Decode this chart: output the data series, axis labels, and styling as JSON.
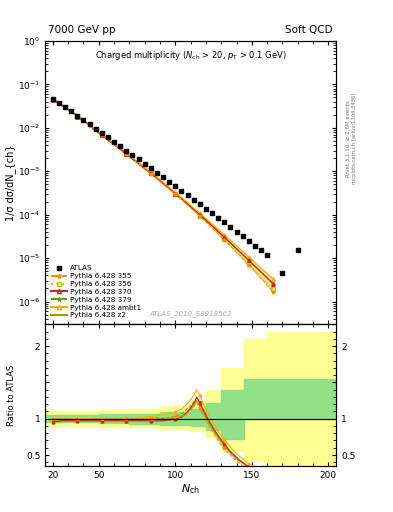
{
  "title_left": "7000 GeV pp",
  "title_right": "Soft QCD",
  "ylabel_main": "1/σ dσ/dN_{ch}",
  "ylabel_ratio": "Ratio to ATLAS",
  "xlabel": "N_{ch}",
  "watermark": "ATLAS_2010_S8918562",
  "right_label": "Rivet 3.1.10, ≥ 2.6M events",
  "right_label2": "mcplots.cern.ch [arXiv:1306.3436]",
  "xlim": [
    15,
    205
  ],
  "ylim_main": [
    3e-07,
    1.0
  ],
  "colors": {
    "p355": "#FF8C00",
    "p356": "#AACC00",
    "p370": "#CC2222",
    "p379": "#669900",
    "ambt1": "#FFAA00",
    "z2": "#999900"
  },
  "atlas_x": [
    20,
    24,
    28,
    32,
    36,
    40,
    44,
    48,
    52,
    56,
    60,
    64,
    68,
    72,
    76,
    80,
    84,
    88,
    92,
    96,
    100,
    104,
    108,
    112,
    116,
    120,
    124,
    128,
    132,
    136,
    140,
    144,
    148,
    152,
    156,
    160,
    170,
    180
  ],
  "atlas_y": [
    0.046,
    0.038,
    0.03,
    0.024,
    0.019,
    0.015,
    0.012,
    0.0095,
    0.0075,
    0.006,
    0.0048,
    0.0038,
    0.003,
    0.0024,
    0.0019,
    0.0015,
    0.00118,
    0.00093,
    0.00073,
    0.00058,
    0.00046,
    0.00036,
    0.00028,
    0.00022,
    0.000175,
    0.000138,
    0.000109,
    8.6e-05,
    6.7e-05,
    5.3e-05,
    4.1e-05,
    3.2e-05,
    2.5e-05,
    1.95e-05,
    1.52e-05,
    1.2e-05,
    4.5e-06,
    1.5e-05
  ],
  "mc_x": [
    20,
    22,
    24,
    26,
    28,
    30,
    32,
    34,
    36,
    38,
    40,
    42,
    44,
    46,
    48,
    50,
    52,
    54,
    56,
    58,
    60,
    62,
    64,
    66,
    68,
    70,
    72,
    74,
    76,
    78,
    80,
    82,
    84,
    86,
    88,
    90,
    92,
    94,
    96,
    98,
    100,
    102,
    104,
    106,
    108,
    110,
    112,
    114,
    116,
    118,
    120,
    122,
    124,
    126,
    128,
    130,
    132,
    134,
    136,
    138,
    140,
    142,
    144,
    146,
    148,
    150,
    152,
    154,
    156,
    158,
    160,
    162,
    164
  ],
  "pythia355_y": [
    0.046,
    0.042,
    0.038,
    0.034,
    0.03,
    0.027,
    0.024,
    0.021,
    0.019,
    0.016,
    0.014,
    0.013,
    0.011,
    0.01,
    0.0088,
    0.0078,
    0.0069,
    0.0061,
    0.0054,
    0.0048,
    0.0042,
    0.0037,
    0.0033,
    0.0029,
    0.0025,
    0.0022,
    0.002,
    0.0017,
    0.0015,
    0.0013,
    0.00115,
    0.00101,
    0.00088,
    0.00077,
    0.00068,
    0.00059,
    0.00052,
    0.00045,
    0.00039,
    0.00034,
    0.0003,
    0.00026,
    0.000225,
    0.000194,
    0.000167,
    0.000144,
    0.000124,
    0.000107,
    9.18e-05,
    7.89e-05,
    6.77e-05,
    5.8e-05,
    4.96e-05,
    4.24e-05,
    3.62e-05,
    3.09e-05,
    2.63e-05,
    2.24e-05,
    1.9e-05,
    1.61e-05,
    1.36e-05,
    1.15e-05,
    9.7e-06,
    8.2e-06,
    6.9e-06,
    5.8e-06,
    4.9e-06,
    4.1e-06,
    3.4e-06,
    2.9e-06,
    2.4e-06,
    2e-06,
    1.7e-06
  ],
  "pythia356_y": [
    0.046,
    0.042,
    0.038,
    0.034,
    0.031,
    0.027,
    0.024,
    0.021,
    0.019,
    0.017,
    0.015,
    0.013,
    0.011,
    0.01,
    0.0088,
    0.0078,
    0.0069,
    0.0061,
    0.0054,
    0.0048,
    0.0042,
    0.0037,
    0.0033,
    0.0029,
    0.0026,
    0.0023,
    0.002,
    0.0017,
    0.0015,
    0.0013,
    0.00116,
    0.00101,
    0.00089,
    0.00078,
    0.00068,
    0.0006,
    0.00052,
    0.00046,
    0.0004,
    0.00035,
    0.0003,
    0.00026,
    0.000228,
    0.000197,
    0.00017,
    0.000147,
    0.000127,
    0.00011,
    9.46e-05,
    8.14e-05,
    7e-05,
    6.01e-05,
    5.15e-05,
    4.41e-05,
    3.78e-05,
    3.23e-05,
    2.76e-05,
    2.36e-05,
    2.01e-05,
    1.71e-05,
    1.45e-05,
    1.23e-05,
    1.04e-05,
    8.8e-06,
    7.5e-06,
    6.3e-06,
    5.3e-06,
    4.5e-06,
    3.8e-06,
    3.2e-06,
    2.7e-06,
    2.3e-06,
    1.9e-06
  ],
  "pythia370_y": [
    0.044,
    0.04,
    0.036,
    0.033,
    0.029,
    0.026,
    0.023,
    0.021,
    0.018,
    0.016,
    0.014,
    0.013,
    0.011,
    0.0097,
    0.0086,
    0.0076,
    0.0067,
    0.0059,
    0.0052,
    0.0046,
    0.0041,
    0.0036,
    0.0032,
    0.0028,
    0.0025,
    0.0022,
    0.0019,
    0.0017,
    0.0015,
    0.0013,
    0.00115,
    0.00101,
    0.00089,
    0.00078,
    0.00068,
    0.0006,
    0.00052,
    0.00046,
    0.0004,
    0.00035,
    0.0003,
    0.000266,
    0.000232,
    0.000202,
    0.000175,
    0.000152,
    0.000132,
    0.000115,
    9.95e-05,
    8.61e-05,
    7.44e-05,
    6.42e-05,
    5.54e-05,
    4.77e-05,
    4.11e-05,
    3.53e-05,
    3.04e-05,
    2.61e-05,
    2.24e-05,
    1.92e-05,
    1.65e-05,
    1.41e-05,
    1.21e-05,
    1.04e-05,
    8.9e-06,
    7.6e-06,
    6.5e-06,
    5.6e-06,
    4.8e-06,
    4.1e-06,
    3.5e-06,
    3e-06,
    2.5e-06
  ],
  "pythia379_y": [
    0.046,
    0.042,
    0.038,
    0.034,
    0.03,
    0.027,
    0.024,
    0.021,
    0.019,
    0.017,
    0.015,
    0.013,
    0.011,
    0.01,
    0.0088,
    0.0078,
    0.0069,
    0.0061,
    0.0054,
    0.0048,
    0.0042,
    0.0037,
    0.0033,
    0.0029,
    0.0025,
    0.0022,
    0.002,
    0.0017,
    0.0015,
    0.0013,
    0.00116,
    0.00101,
    0.00089,
    0.00078,
    0.00068,
    0.0006,
    0.00052,
    0.00046,
    0.0004,
    0.00035,
    0.000305,
    0.000266,
    0.000231,
    0.000201,
    0.000174,
    0.000151,
    0.000131,
    0.000114,
    9.85e-05,
    8.53e-05,
    7.37e-05,
    6.37e-05,
    5.5e-05,
    4.74e-05,
    4.09e-05,
    3.52e-05,
    3.03e-05,
    2.61e-05,
    2.24e-05,
    1.92e-05,
    1.65e-05,
    1.41e-05,
    1.21e-05,
    1.04e-05,
    8.9e-06,
    7.6e-06,
    6.5e-06,
    5.6e-06,
    4.8e-06,
    4.1e-06,
    3.5e-06,
    3e-06,
    2.5e-06
  ],
  "pythia_ambt1_y": [
    0.046,
    0.042,
    0.038,
    0.034,
    0.031,
    0.027,
    0.024,
    0.022,
    0.019,
    0.017,
    0.015,
    0.013,
    0.011,
    0.01,
    0.0089,
    0.0079,
    0.007,
    0.0062,
    0.0055,
    0.0049,
    0.0043,
    0.0038,
    0.0034,
    0.003,
    0.0026,
    0.0023,
    0.0021,
    0.0018,
    0.0016,
    0.0014,
    0.00124,
    0.00109,
    0.00095,
    0.00083,
    0.00073,
    0.00064,
    0.00056,
    0.00049,
    0.00043,
    0.00037,
    0.000326,
    0.000285,
    0.000249,
    0.000218,
    0.000189,
    0.000165,
    0.000143,
    0.000125,
    0.000108,
    9.39e-05,
    8.14e-05,
    7.06e-05,
    6.12e-05,
    5.3e-05,
    4.59e-05,
    3.97e-05,
    3.44e-05,
    2.98e-05,
    2.57e-05,
    2.22e-05,
    1.92e-05,
    1.65e-05,
    1.43e-05,
    1.23e-05,
    1.06e-05,
    9.2e-06,
    7.9e-06,
    6.8e-06,
    5.9e-06,
    5.1e-06,
    4.4e-06,
    3.8e-06,
    3.3e-06
  ],
  "pythia_z2_y": [
    0.045,
    0.041,
    0.037,
    0.033,
    0.03,
    0.027,
    0.024,
    0.021,
    0.019,
    0.017,
    0.015,
    0.013,
    0.011,
    0.01,
    0.0088,
    0.0078,
    0.0069,
    0.0061,
    0.0054,
    0.0048,
    0.0042,
    0.0037,
    0.0033,
    0.0029,
    0.0026,
    0.0023,
    0.002,
    0.0017,
    0.0015,
    0.0013,
    0.00116,
    0.00101,
    0.00089,
    0.00078,
    0.00068,
    0.0006,
    0.00052,
    0.00046,
    0.0004,
    0.00035,
    0.000305,
    0.000266,
    0.000231,
    0.000201,
    0.000174,
    0.000151,
    0.000131,
    0.000114,
    9.85e-05,
    8.53e-05,
    7.37e-05,
    6.37e-05,
    5.5e-05,
    4.74e-05,
    4.09e-05,
    3.52e-05,
    3.03e-05,
    2.61e-05,
    2.24e-05,
    1.92e-05,
    1.65e-05,
    1.41e-05,
    1.21e-05,
    1.04e-05,
    8.9e-06,
    7.6e-06,
    6.5e-06,
    5.6e-06,
    4.8e-06,
    4.1e-06,
    3.5e-06,
    3e-06,
    2.5e-06
  ],
  "ratio355": [
    1.0,
    1.0,
    1.0,
    1.0,
    1.0,
    1.0,
    1.0,
    0.99,
    0.99,
    0.99,
    0.99,
    0.99,
    0.99,
    0.99,
    0.99,
    0.99,
    0.99,
    0.99,
    0.99,
    0.99,
    0.99,
    0.99,
    0.99,
    0.99,
    0.99,
    0.99,
    1.0,
    1.0,
    1.0,
    1.0,
    1.0,
    1.0,
    1.0,
    1.0,
    1.0,
    1.0,
    1.01,
    1.01,
    1.01,
    1.02,
    1.02,
    1.02,
    1.03,
    1.05,
    1.08,
    1.11,
    1.16,
    1.22,
    1.14,
    1.05,
    0.98,
    0.9,
    0.83,
    0.76,
    0.7,
    0.64,
    0.59,
    0.54,
    0.5,
    0.46,
    0.42,
    0.38,
    0.35,
    0.32,
    0.3,
    0.28,
    0.26,
    0.24,
    0.22,
    0.21,
    0.19,
    0.18,
    0.17
  ],
  "ratio356": [
    1.0,
    1.0,
    1.0,
    1.0,
    1.01,
    1.0,
    1.0,
    1.0,
    1.0,
    1.0,
    1.0,
    1.0,
    1.0,
    1.0,
    1.0,
    1.0,
    1.0,
    1.0,
    1.0,
    1.0,
    1.0,
    1.0,
    1.0,
    1.0,
    1.0,
    1.0,
    1.0,
    1.0,
    1.0,
    1.0,
    1.0,
    1.0,
    1.0,
    1.01,
    1.01,
    1.01,
    1.01,
    1.01,
    1.02,
    1.02,
    1.02,
    1.03,
    1.04,
    1.06,
    1.09,
    1.13,
    1.18,
    1.25,
    1.17,
    1.08,
    1.0,
    0.92,
    0.85,
    0.78,
    0.72,
    0.66,
    0.61,
    0.56,
    0.52,
    0.48,
    0.44,
    0.4,
    0.37,
    0.34,
    0.31,
    0.29,
    0.27,
    0.25,
    0.23,
    0.22,
    0.2,
    0.19,
    0.18
  ],
  "ratio370": [
    0.96,
    0.96,
    0.96,
    0.97,
    0.97,
    0.97,
    0.97,
    0.97,
    0.97,
    0.97,
    0.97,
    0.97,
    0.97,
    0.97,
    0.97,
    0.97,
    0.97,
    0.97,
    0.97,
    0.97,
    0.97,
    0.97,
    0.97,
    0.97,
    0.97,
    0.97,
    0.97,
    0.97,
    0.97,
    0.97,
    0.97,
    0.97,
    0.97,
    0.97,
    0.97,
    0.97,
    0.97,
    0.98,
    0.98,
    0.99,
    0.99,
    1.01,
    1.02,
    1.06,
    1.1,
    1.15,
    1.21,
    1.29,
    1.22,
    1.13,
    1.05,
    0.97,
    0.9,
    0.83,
    0.77,
    0.71,
    0.65,
    0.6,
    0.55,
    0.51,
    0.47,
    0.43,
    0.4,
    0.37,
    0.34,
    0.32,
    0.3,
    0.28,
    0.26,
    0.24,
    0.23,
    0.21,
    0.2
  ],
  "ratio379": [
    1.0,
    1.0,
    1.0,
    1.0,
    1.0,
    1.0,
    1.0,
    1.0,
    1.0,
    1.0,
    1.0,
    1.0,
    1.0,
    1.0,
    1.0,
    1.0,
    1.0,
    1.0,
    1.0,
    1.0,
    1.0,
    1.0,
    1.0,
    1.0,
    1.0,
    1.0,
    1.0,
    1.0,
    1.0,
    1.0,
    1.0,
    1.0,
    1.01,
    1.01,
    1.01,
    1.01,
    1.01,
    1.01,
    1.02,
    1.02,
    1.03,
    1.05,
    1.07,
    1.1,
    1.14,
    1.18,
    1.23,
    1.3,
    1.23,
    1.14,
    1.06,
    0.97,
    0.9,
    0.83,
    0.76,
    0.7,
    0.64,
    0.59,
    0.54,
    0.5,
    0.46,
    0.42,
    0.39,
    0.36,
    0.33,
    0.31,
    0.29,
    0.27,
    0.25,
    0.23,
    0.22,
    0.2,
    0.19
  ],
  "ratio_ambt1": [
    1.0,
    1.0,
    1.0,
    1.0,
    1.01,
    1.01,
    1.0,
    1.0,
    1.0,
    1.0,
    1.0,
    1.0,
    1.0,
    1.01,
    1.01,
    1.01,
    1.01,
    1.01,
    1.01,
    1.01,
    1.01,
    1.01,
    1.01,
    1.01,
    1.01,
    1.01,
    1.01,
    1.01,
    1.02,
    1.02,
    1.02,
    1.03,
    1.03,
    1.04,
    1.04,
    1.05,
    1.05,
    1.06,
    1.07,
    1.08,
    1.09,
    1.11,
    1.13,
    1.17,
    1.21,
    1.26,
    1.32,
    1.4,
    1.32,
    1.22,
    1.13,
    1.05,
    0.97,
    0.9,
    0.83,
    0.77,
    0.71,
    0.66,
    0.61,
    0.56,
    0.52,
    0.48,
    0.45,
    0.41,
    0.38,
    0.36,
    0.33,
    0.31,
    0.29,
    0.27,
    0.25,
    0.24,
    0.22
  ],
  "ratio_z2": [
    0.98,
    0.98,
    0.98,
    0.98,
    0.98,
    0.98,
    0.98,
    0.98,
    0.98,
    0.98,
    0.98,
    0.98,
    0.98,
    0.98,
    0.98,
    0.98,
    0.98,
    0.98,
    0.98,
    0.98,
    0.98,
    0.98,
    0.98,
    0.98,
    0.98,
    0.98,
    0.98,
    0.98,
    0.98,
    0.98,
    0.98,
    0.98,
    0.99,
    0.99,
    0.99,
    0.99,
    0.99,
    0.99,
    1.0,
    1.0,
    1.0,
    1.01,
    1.03,
    1.05,
    1.08,
    1.13,
    1.18,
    1.25,
    1.18,
    1.1,
    1.02,
    0.94,
    0.87,
    0.8,
    0.74,
    0.68,
    0.63,
    0.58,
    0.53,
    0.49,
    0.45,
    0.42,
    0.39,
    0.36,
    0.33,
    0.31,
    0.29,
    0.27,
    0.25,
    0.23,
    0.22,
    0.2,
    0.19
  ]
}
